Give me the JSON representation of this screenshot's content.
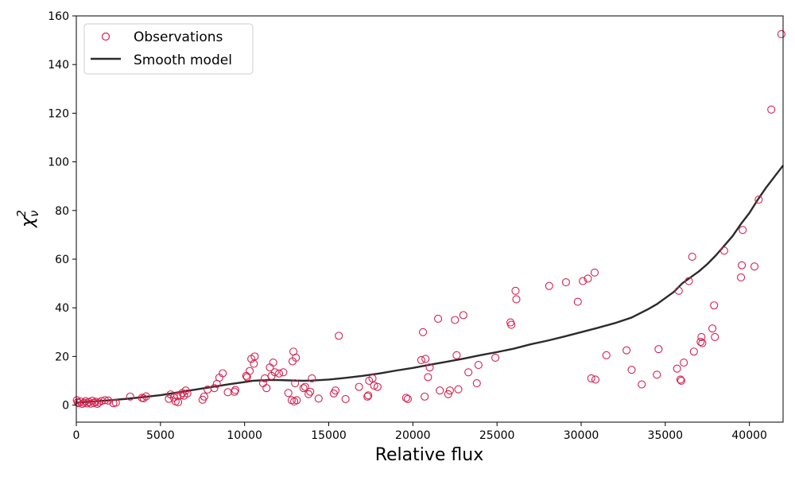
{
  "chart_data": {
    "type": "scatter",
    "xlabel": "Relative flux",
    "ylabel": "χ",
    "ylabel_sub": "ν",
    "ylabel_sup": "2",
    "xlim": [
      0,
      42000
    ],
    "ylim": [
      -7,
      160
    ],
    "x_ticks": [
      0,
      5000,
      10000,
      15000,
      20000,
      25000,
      30000,
      35000,
      40000
    ],
    "y_ticks": [
      0,
      20,
      40,
      60,
      80,
      100,
      120,
      140,
      160
    ],
    "grid": false,
    "legend_position": "top-left",
    "colors": {
      "observations": "#d6204e",
      "model": "#2b2b2b"
    },
    "series": [
      {
        "name": "Observations",
        "kind": "scatter",
        "points": [
          [
            30,
            2.0
          ],
          [
            80,
            1.2
          ],
          [
            150,
            0.8
          ],
          [
            250,
            1.5
          ],
          [
            350,
            0.5
          ],
          [
            450,
            1.0
          ],
          [
            550,
            1.6
          ],
          [
            650,
            0.7
          ],
          [
            750,
            1.3
          ],
          [
            850,
            0.6
          ],
          [
            950,
            1.8
          ],
          [
            1050,
            0.9
          ],
          [
            1150,
            1.4
          ],
          [
            1250,
            0.5
          ],
          [
            1350,
            1.1
          ],
          [
            1500,
            1.7
          ],
          [
            1700,
            2.0
          ],
          [
            1900,
            1.9
          ],
          [
            2200,
            0.8
          ],
          [
            2350,
            1.0
          ],
          [
            3200,
            3.5
          ],
          [
            3900,
            3.0
          ],
          [
            4000,
            2.8
          ],
          [
            4150,
            3.6
          ],
          [
            5500,
            2.6
          ],
          [
            5600,
            4.4
          ],
          [
            5800,
            3.1
          ],
          [
            5900,
            1.5
          ],
          [
            6000,
            3.8
          ],
          [
            6050,
            1.2
          ],
          [
            6200,
            4.0
          ],
          [
            6300,
            5.0
          ],
          [
            6400,
            3.9
          ],
          [
            6500,
            6.0
          ],
          [
            6600,
            4.8
          ],
          [
            7500,
            2.2
          ],
          [
            7600,
            3.5
          ],
          [
            7800,
            6.4
          ],
          [
            8200,
            7.0
          ],
          [
            8350,
            8.7
          ],
          [
            8500,
            11.3
          ],
          [
            8700,
            13.1
          ],
          [
            9000,
            5.3
          ],
          [
            9400,
            5.5
          ],
          [
            9450,
            6.2
          ],
          [
            10100,
            12.0
          ],
          [
            10150,
            11.5
          ],
          [
            10300,
            14.0
          ],
          [
            10400,
            19.0
          ],
          [
            10550,
            17.0
          ],
          [
            10600,
            20.0
          ],
          [
            11100,
            9.0
          ],
          [
            11200,
            11.0
          ],
          [
            11300,
            7.0
          ],
          [
            11500,
            15.5
          ],
          [
            11600,
            12.0
          ],
          [
            11700,
            17.5
          ],
          [
            11800,
            13.5
          ],
          [
            12050,
            13.0
          ],
          [
            12300,
            13.5
          ],
          [
            12600,
            5.0
          ],
          [
            12800,
            2.0
          ],
          [
            12850,
            18.0
          ],
          [
            12900,
            22.0
          ],
          [
            12950,
            1.5
          ],
          [
            13000,
            9.0
          ],
          [
            13050,
            19.5
          ],
          [
            13100,
            2.0
          ],
          [
            13500,
            7.0
          ],
          [
            13600,
            7.5
          ],
          [
            13800,
            4.5
          ],
          [
            13900,
            5.5
          ],
          [
            14000,
            11.0
          ],
          [
            14400,
            2.7
          ],
          [
            15300,
            4.8
          ],
          [
            15400,
            6.0
          ],
          [
            15600,
            28.5
          ],
          [
            16000,
            2.5
          ],
          [
            16800,
            7.5
          ],
          [
            17300,
            3.5
          ],
          [
            17350,
            4.0
          ],
          [
            17400,
            10.0
          ],
          [
            17600,
            11.0
          ],
          [
            17700,
            8.0
          ],
          [
            17900,
            7.5
          ],
          [
            19600,
            3.0
          ],
          [
            19700,
            2.5
          ],
          [
            20500,
            18.5
          ],
          [
            20600,
            30.0
          ],
          [
            20700,
            3.5
          ],
          [
            20750,
            19.0
          ],
          [
            20900,
            11.5
          ],
          [
            21000,
            15.5
          ],
          [
            21500,
            35.5
          ],
          [
            21600,
            6.0
          ],
          [
            22100,
            4.5
          ],
          [
            22200,
            6.0
          ],
          [
            22500,
            35.0
          ],
          [
            22600,
            20.5
          ],
          [
            22700,
            6.5
          ],
          [
            23000,
            37.0
          ],
          [
            23300,
            13.5
          ],
          [
            23800,
            9.0
          ],
          [
            23900,
            16.5
          ],
          [
            24900,
            19.5
          ],
          [
            25800,
            34.0
          ],
          [
            25850,
            33.0
          ],
          [
            26100,
            47.0
          ],
          [
            26150,
            43.5
          ],
          [
            28100,
            49.0
          ],
          [
            29100,
            50.5
          ],
          [
            29800,
            42.5
          ],
          [
            30100,
            51.0
          ],
          [
            30400,
            52.0
          ],
          [
            30600,
            11.0
          ],
          [
            30800,
            54.5
          ],
          [
            30850,
            10.5
          ],
          [
            31500,
            20.5
          ],
          [
            32700,
            22.5
          ],
          [
            33000,
            14.5
          ],
          [
            33600,
            8.5
          ],
          [
            34500,
            12.5
          ],
          [
            34600,
            23.0
          ],
          [
            35700,
            15.0
          ],
          [
            35800,
            47.0
          ],
          [
            35900,
            10.5
          ],
          [
            35950,
            10.0
          ],
          [
            36100,
            17.5
          ],
          [
            36400,
            51.0
          ],
          [
            36600,
            61.0
          ],
          [
            36700,
            22.0
          ],
          [
            37100,
            26.0
          ],
          [
            37150,
            28.0
          ],
          [
            37200,
            25.5
          ],
          [
            37800,
            31.5
          ],
          [
            37900,
            41.0
          ],
          [
            37950,
            28.0
          ],
          [
            38500,
            63.5
          ],
          [
            39500,
            52.5
          ],
          [
            39550,
            57.5
          ],
          [
            39600,
            72.0
          ],
          [
            40300,
            57.0
          ],
          [
            40550,
            84.5
          ],
          [
            41300,
            121.5
          ],
          [
            41900,
            152.5
          ]
        ]
      },
      {
        "name": "Smooth model",
        "kind": "line",
        "points": [
          [
            0,
            1.0
          ],
          [
            1000,
            1.5
          ],
          [
            2000,
            2.0
          ],
          [
            3000,
            2.6
          ],
          [
            4000,
            3.3
          ],
          [
            5000,
            4.1
          ],
          [
            6000,
            5.2
          ],
          [
            7000,
            6.3
          ],
          [
            8000,
            7.4
          ],
          [
            9000,
            8.5
          ],
          [
            10000,
            9.5
          ],
          [
            10500,
            10.0
          ],
          [
            11000,
            10.2
          ],
          [
            11500,
            10.3
          ],
          [
            12000,
            10.3
          ],
          [
            12500,
            10.2
          ],
          [
            13000,
            10.1
          ],
          [
            13500,
            10.0
          ],
          [
            14000,
            10.1
          ],
          [
            15000,
            10.5
          ],
          [
            16000,
            11.2
          ],
          [
            17000,
            12.0
          ],
          [
            18000,
            13.0
          ],
          [
            19000,
            14.2
          ],
          [
            20000,
            15.3
          ],
          [
            21000,
            16.6
          ],
          [
            22000,
            17.8
          ],
          [
            23000,
            19.1
          ],
          [
            24000,
            20.5
          ],
          [
            25000,
            21.8
          ],
          [
            26000,
            23.2
          ],
          [
            27000,
            25.0
          ],
          [
            28000,
            26.5
          ],
          [
            29000,
            28.2
          ],
          [
            30000,
            30.0
          ],
          [
            31000,
            31.8
          ],
          [
            32000,
            33.7
          ],
          [
            33000,
            36.0
          ],
          [
            34000,
            39.5
          ],
          [
            34500,
            41.5
          ],
          [
            35000,
            44.0
          ],
          [
            35500,
            46.5
          ],
          [
            36000,
            50.0
          ],
          [
            36500,
            52.5
          ],
          [
            37000,
            55.0
          ],
          [
            37500,
            58.0
          ],
          [
            38000,
            61.5
          ],
          [
            38500,
            65.5
          ],
          [
            39000,
            69.5
          ],
          [
            39500,
            74.5
          ],
          [
            40000,
            79.0
          ],
          [
            40500,
            84.5
          ],
          [
            41000,
            89.5
          ],
          [
            41500,
            94.0
          ],
          [
            42000,
            98.5
          ]
        ]
      }
    ]
  }
}
